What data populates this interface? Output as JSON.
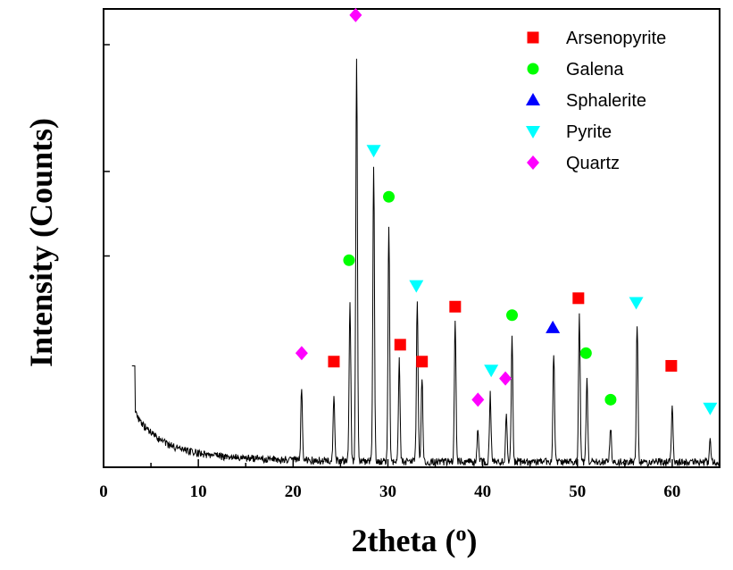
{
  "chart_data": {
    "type": "line",
    "xlabel": "2theta (",
    "xlabel_sup": "o",
    "xlabel_end": ")",
    "ylabel": "Intensity (Counts)",
    "xlim": [
      0,
      65
    ],
    "ylim": [
      0,
      100
    ],
    "xticks": [
      0,
      10,
      20,
      30,
      40,
      50,
      60
    ],
    "x_minor_step": 5,
    "y_ticks_unlabeled": [
      0,
      50,
      70,
      100
    ],
    "grid": false,
    "legend_position": "top-right",
    "series": [
      {
        "name": "",
        "color": "#000000",
        "peaks": [
          {
            "x": 20.9,
            "h": 17
          },
          {
            "x": 24.3,
            "h": 15
          },
          {
            "x": 26.0,
            "h": 38
          },
          {
            "x": 26.7,
            "h": 96
          },
          {
            "x": 28.5,
            "h": 70
          },
          {
            "x": 30.1,
            "h": 56
          },
          {
            "x": 31.2,
            "h": 24
          },
          {
            "x": 33.1,
            "h": 38
          },
          {
            "x": 33.6,
            "h": 20
          },
          {
            "x": 37.1,
            "h": 33
          },
          {
            "x": 39.5,
            "h": 8
          },
          {
            "x": 40.8,
            "h": 16
          },
          {
            "x": 42.5,
            "h": 11
          },
          {
            "x": 43.1,
            "h": 29
          },
          {
            "x": 47.5,
            "h": 26
          },
          {
            "x": 50.2,
            "h": 35
          },
          {
            "x": 51.0,
            "h": 20
          },
          {
            "x": 53.5,
            "h": 8
          },
          {
            "x": 56.3,
            "h": 33
          },
          {
            "x": 60.0,
            "h": 13
          },
          {
            "x": 64.0,
            "h": 5
          }
        ]
      }
    ],
    "markers": [
      {
        "phase": "Arsenopyrite",
        "shape": "square",
        "color": "#ff0000",
        "points": [
          [
            24.3,
            25
          ],
          [
            31.3,
            29
          ],
          [
            33.6,
            25
          ],
          [
            37.1,
            38
          ],
          [
            50.1,
            40
          ],
          [
            59.9,
            24
          ]
        ]
      },
      {
        "phase": "Galena",
        "shape": "circle",
        "color": "#00ff00",
        "points": [
          [
            25.9,
            49
          ],
          [
            30.1,
            64
          ],
          [
            43.1,
            36
          ],
          [
            50.9,
            27
          ],
          [
            53.5,
            16
          ]
        ]
      },
      {
        "phase": "Sphalerite",
        "shape": "triangle-up",
        "color": "#0000ff",
        "points": [
          [
            47.4,
            33
          ]
        ]
      },
      {
        "phase": "Pyrite",
        "shape": "triangle-down",
        "color": "#00ffff",
        "points": [
          [
            28.5,
            75
          ],
          [
            33.0,
            43
          ],
          [
            40.9,
            23
          ],
          [
            56.2,
            39
          ],
          [
            64.0,
            14
          ]
        ]
      },
      {
        "phase": "Quartz",
        "shape": "diamond",
        "color": "#ff00ff",
        "points": [
          [
            20.9,
            27
          ],
          [
            26.6,
            107
          ],
          [
            39.5,
            16
          ],
          [
            42.4,
            21
          ]
        ]
      }
    ]
  }
}
